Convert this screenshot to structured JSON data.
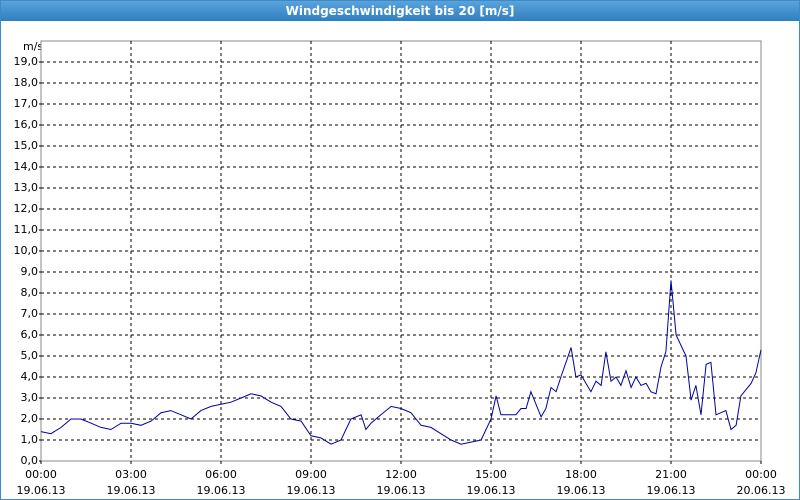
{
  "chart_data": {
    "type": "line",
    "title": "Windgeschwindigkeit bis 20 [m/s]",
    "y_label": "m/s",
    "x": [
      0,
      0.33,
      0.67,
      1,
      1.33,
      1.67,
      2,
      2.33,
      2.67,
      3,
      3.33,
      3.67,
      4,
      4.33,
      4.67,
      5,
      5.33,
      5.67,
      6,
      6.33,
      6.67,
      7,
      7.33,
      7.67,
      8,
      8.33,
      8.67,
      9,
      9.33,
      9.67,
      10,
      10.33,
      10.67,
      10.83,
      11,
      11.33,
      11.67,
      12,
      12.33,
      12.67,
      13,
      13.33,
      13.67,
      14,
      14.33,
      14.67,
      15,
      15.17,
      15.33,
      15.83,
      16,
      16.17,
      16.33,
      16.67,
      16.83,
      17,
      17.17,
      17.33,
      17.67,
      17.83,
      18,
      18.33,
      18.5,
      18.67,
      18.83,
      19,
      19.17,
      19.33,
      19.5,
      19.67,
      19.83,
      20,
      20.17,
      20.33,
      20.5,
      20.67,
      20.83,
      21,
      21.17,
      21.5,
      21.67,
      21.83,
      22,
      22.17,
      22.33,
      22.5,
      22.83,
      23,
      23.17,
      23.33,
      23.67,
      23.83,
      24
    ],
    "series": [
      {
        "name": "Windgeschwindigkeit",
        "color": "#0000a0",
        "values": [
          1.4,
          1.3,
          1.6,
          2.0,
          2.0,
          1.8,
          1.6,
          1.5,
          1.8,
          1.8,
          1.7,
          1.9,
          2.3,
          2.4,
          2.2,
          2.0,
          2.4,
          2.6,
          2.7,
          2.8,
          3.0,
          3.2,
          3.1,
          2.8,
          2.6,
          2.0,
          1.9,
          1.2,
          1.1,
          0.8,
          1.0,
          2.0,
          2.2,
          1.5,
          1.8,
          2.2,
          2.6,
          2.5,
          2.3,
          1.7,
          1.6,
          1.3,
          1.0,
          0.8,
          0.9,
          1.0,
          2.0,
          3.1,
          2.2,
          2.2,
          2.5,
          2.5,
          3.3,
          2.1,
          2.5,
          3.5,
          3.3,
          4.0,
          5.4,
          4.0,
          4.1,
          3.3,
          3.8,
          3.6,
          5.2,
          3.8,
          4.0,
          3.6,
          4.3,
          3.5,
          4.0,
          3.6,
          3.7,
          3.3,
          3.2,
          4.5,
          5.2,
          8.6,
          6.0,
          5.0,
          2.9,
          3.6,
          2.2,
          4.6,
          4.7,
          2.2,
          2.4,
          1.5,
          1.7,
          3.1,
          3.7,
          4.2,
          5.3
        ]
      }
    ],
    "xlim": [
      0,
      24
    ],
    "xticks": [
      {
        "value": 0,
        "label": "00:00",
        "date": "19.06.13"
      },
      {
        "value": 3,
        "label": "03:00",
        "date": "19.06.13"
      },
      {
        "value": 6,
        "label": "06:00",
        "date": "19.06.13"
      },
      {
        "value": 9,
        "label": "09:00",
        "date": "19.06.13"
      },
      {
        "value": 12,
        "label": "12:00",
        "date": "19.06.13"
      },
      {
        "value": 15,
        "label": "15:00",
        "date": "19.06.13"
      },
      {
        "value": 18,
        "label": "18:00",
        "date": "19.06.13"
      },
      {
        "value": 21,
        "label": "21:00",
        "date": "19.06.13"
      },
      {
        "value": 24,
        "label": "00:00",
        "date": "20.06.13"
      }
    ],
    "ylim": [
      0,
      20
    ],
    "yticks": [
      {
        "value": 0,
        "label": "0,0"
      },
      {
        "value": 1,
        "label": "1,0"
      },
      {
        "value": 2,
        "label": "2,0"
      },
      {
        "value": 3,
        "label": "3,0"
      },
      {
        "value": 4,
        "label": "4,0"
      },
      {
        "value": 5,
        "label": "5,0"
      },
      {
        "value": 6,
        "label": "6,0"
      },
      {
        "value": 7,
        "label": "7,0"
      },
      {
        "value": 8,
        "label": "8,0"
      },
      {
        "value": 9,
        "label": "9,0"
      },
      {
        "value": 10,
        "label": "10,0"
      },
      {
        "value": 11,
        "label": "11,0"
      },
      {
        "value": 12,
        "label": "12,0"
      },
      {
        "value": 13,
        "label": "13,0"
      },
      {
        "value": 14,
        "label": "14,0"
      },
      {
        "value": 15,
        "label": "15,0"
      },
      {
        "value": 16,
        "label": "16,0"
      },
      {
        "value": 17,
        "label": "17,0"
      },
      {
        "value": 18,
        "label": "18,0"
      },
      {
        "value": 19,
        "label": "19,0"
      }
    ],
    "grid": true
  }
}
